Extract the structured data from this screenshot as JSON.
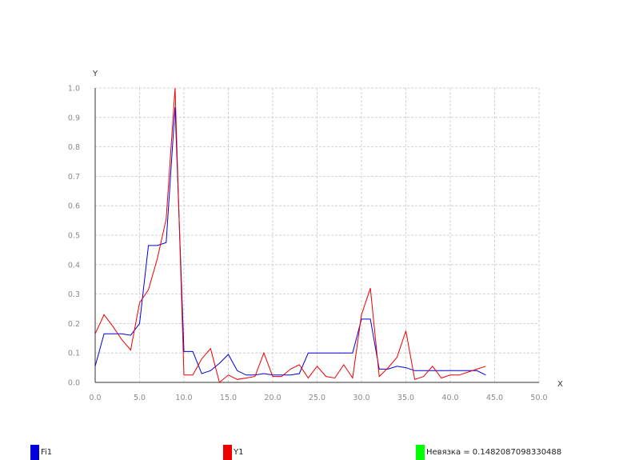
{
  "chart_data": {
    "type": "line",
    "xlabel": "X",
    "ylabel": "Y",
    "xlim": [
      0,
      50
    ],
    "ylim": [
      0,
      1
    ],
    "xticks": [
      "0.0",
      "5.0",
      "10.0",
      "15.0",
      "20.0",
      "25.0",
      "30.0",
      "35.0",
      "40.0",
      "45.0",
      "50.0"
    ],
    "yticks": [
      "0.0",
      "0.1",
      "0.2",
      "0.3",
      "0.4",
      "0.5",
      "0.6",
      "0.7",
      "0.8",
      "0.9",
      "1.0"
    ],
    "grid": true,
    "legend_position": "bottom",
    "series": [
      {
        "name": "Fi1",
        "color": "#0000dd",
        "x": [
          0,
          1,
          2,
          3,
          4,
          5,
          6,
          7,
          8,
          9,
          10,
          11,
          12,
          13,
          14,
          15,
          16,
          17,
          18,
          19,
          20,
          21,
          22,
          23,
          24,
          25,
          26,
          27,
          28,
          29,
          30,
          31,
          32,
          33,
          34,
          35,
          36,
          37,
          38,
          39,
          40,
          41,
          42,
          43,
          44
        ],
        "y": [
          0.055,
          0.165,
          0.165,
          0.165,
          0.16,
          0.2,
          0.465,
          0.465,
          0.475,
          0.935,
          0.105,
          0.105,
          0.03,
          0.04,
          0.065,
          0.095,
          0.04,
          0.025,
          0.025,
          0.03,
          0.025,
          0.025,
          0.025,
          0.03,
          0.1,
          0.1,
          0.1,
          0.1,
          0.1,
          0.1,
          0.215,
          0.215,
          0.045,
          0.045,
          0.055,
          0.05,
          0.04,
          0.04,
          0.04,
          0.04,
          0.04,
          0.04,
          0.04,
          0.04,
          0.025
        ]
      },
      {
        "name": "Y1",
        "color": "#ee0000",
        "x": [
          0,
          1,
          2,
          3,
          4,
          5,
          6,
          7,
          8,
          9,
          10,
          11,
          12,
          13,
          14,
          15,
          16,
          17,
          18,
          19,
          20,
          21,
          22,
          23,
          24,
          25,
          26,
          27,
          28,
          29,
          30,
          31,
          32,
          33,
          34,
          35,
          36,
          37,
          38,
          39,
          40,
          41,
          42,
          43,
          44
        ],
        "y": [
          0.165,
          0.23,
          0.19,
          0.145,
          0.11,
          0.27,
          0.315,
          0.42,
          0.555,
          1.0,
          0.025,
          0.025,
          0.08,
          0.115,
          0.0,
          0.025,
          0.01,
          0.015,
          0.02,
          0.1,
          0.02,
          0.02,
          0.045,
          0.06,
          0.015,
          0.055,
          0.02,
          0.015,
          0.06,
          0.015,
          0.23,
          0.32,
          0.02,
          0.05,
          0.085,
          0.175,
          0.01,
          0.02,
          0.055,
          0.015,
          0.025,
          0.025,
          0.035,
          0.045,
          0.055
        ]
      }
    ],
    "annotation": {
      "label": "Невязка = 0.1482087098330488",
      "color": "#00ff00"
    }
  }
}
